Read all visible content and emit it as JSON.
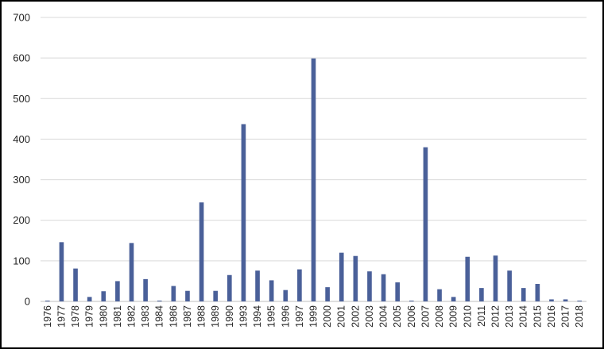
{
  "chart_data": {
    "type": "bar",
    "categories": [
      "1976",
      "1977",
      "1978",
      "1979",
      "1980",
      "1981",
      "1982",
      "1983",
      "1984",
      "1986",
      "1987",
      "1988",
      "1989",
      "1990",
      "1993",
      "1994",
      "1995",
      "1996",
      "1997",
      "1999",
      "2000",
      "2001",
      "2002",
      "2003",
      "2004",
      "2005",
      "2006",
      "2007",
      "2008",
      "2009",
      "2010",
      "2011",
      "2012",
      "2013",
      "2014",
      "2015",
      "2016",
      "2017",
      "2018"
    ],
    "values": [
      2,
      146,
      81,
      11,
      25,
      50,
      144,
      55,
      2,
      38,
      26,
      244,
      26,
      65,
      437,
      76,
      52,
      28,
      79,
      599,
      35,
      120,
      112,
      74,
      67,
      47,
      2,
      380,
      30,
      11,
      110,
      33,
      113,
      76,
      33,
      43,
      5,
      5,
      2
    ],
    "ylim": [
      0,
      700
    ],
    "yticks": [
      0,
      100,
      200,
      300,
      400,
      500,
      600,
      700
    ],
    "title": "",
    "xlabel": "",
    "ylabel": "",
    "grid": true,
    "legend": "none",
    "colors": {
      "bar": "#4A6099",
      "grid": "#D9D9D9",
      "axis": "#BFBFBF",
      "text": "#262626"
    }
  }
}
